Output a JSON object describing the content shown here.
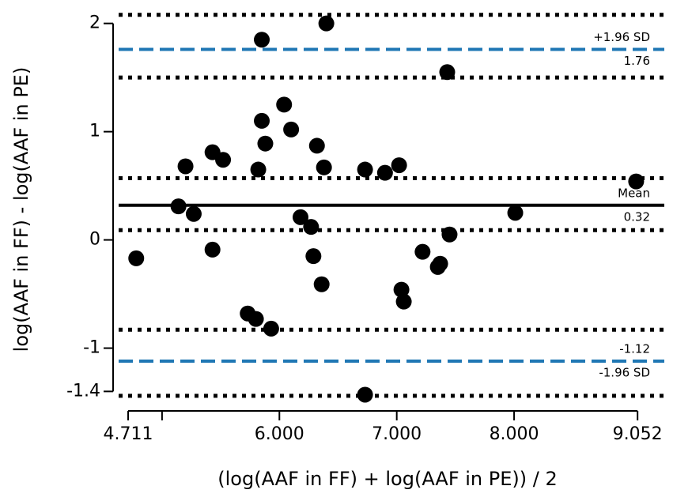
{
  "chart_data": {
    "type": "scatter",
    "x_label": "(log(AAF in FF) + log(AAF in PE)) / 2",
    "y_label": "log(AAF in FF) - log(AAF in PE)",
    "xlim": [
      4.63,
      9.28
    ],
    "ylim": [
      -1.58,
      2.18
    ],
    "xticks": [
      {
        "value": 4.711,
        "label": "4.711"
      },
      {
        "value": 6,
        "label": "6.000"
      },
      {
        "value": 7,
        "label": "7.000"
      },
      {
        "value": 8,
        "label": "8.000"
      },
      {
        "value": 9.052,
        "label": "9.052"
      }
    ],
    "xticks_minor": [
      5
    ],
    "yticks": [
      2,
      1,
      0,
      -1,
      -1.4
    ],
    "color": "#000000",
    "x": [
      4.78,
      5.14,
      5.2,
      5.27,
      5.43,
      5.43,
      5.52,
      5.73,
      5.8,
      5.82,
      5.85,
      5.85,
      5.88,
      5.93,
      6.04,
      6.1,
      6.18,
      6.27,
      6.29,
      6.32,
      6.36,
      6.38,
      6.4,
      6.73,
      6.73,
      6.9,
      7.02,
      7.04,
      7.06,
      7.22,
      7.35,
      7.37,
      7.43,
      7.45,
      8.01,
      9.04
    ],
    "values": [
      -0.17,
      0.31,
      0.68,
      0.24,
      -0.09,
      0.81,
      0.74,
      -0.68,
      -0.73,
      0.65,
      1.85,
      1.1,
      0.89,
      -0.82,
      1.25,
      1.02,
      0.21,
      0.12,
      -0.15,
      0.87,
      -0.41,
      0.67,
      2.0,
      0.65,
      -1.43,
      0.62,
      0.69,
      -0.46,
      -0.57,
      -0.11,
      -0.25,
      -0.22,
      1.55,
      0.05,
      0.25,
      0.54
    ],
    "mean": 0.32,
    "mean_label": "Mean",
    "upper_limit": 1.76,
    "upper_label": "+1.96 SD",
    "lower_limit": -1.12,
    "lower_label": "-1.96 SD",
    "limit_color": "#1f77b4",
    "ci_lines": [
      2.08,
      1.5,
      0.57,
      0.09,
      -0.83,
      -1.44
    ]
  }
}
